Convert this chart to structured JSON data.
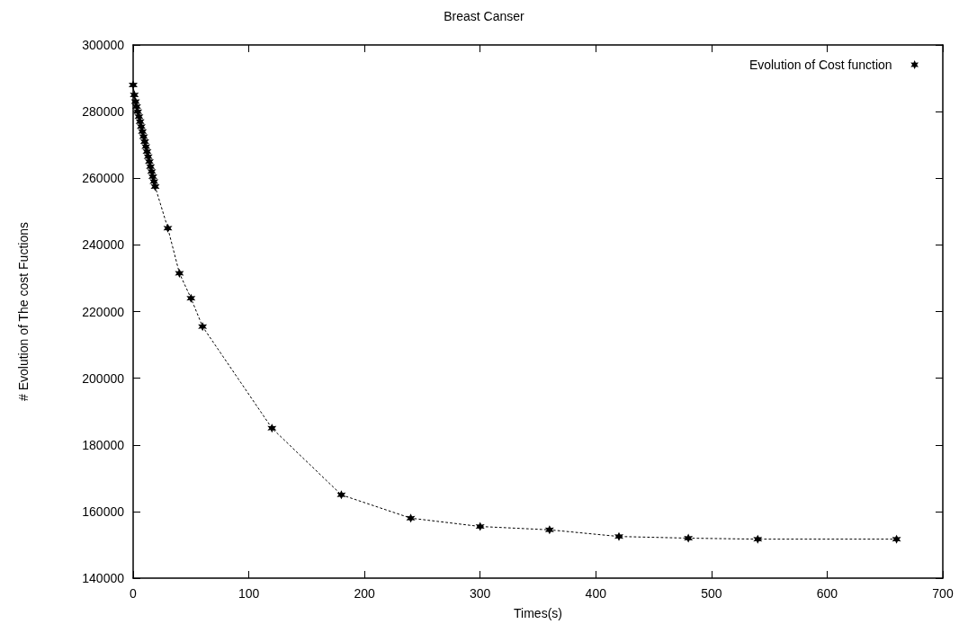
{
  "chart_data": {
    "type": "line",
    "title": "Breast Canser",
    "xlabel": "Times(s)",
    "ylabel": "# Evolution of The cost Fuctions",
    "x": [
      0,
      1,
      2,
      3,
      4,
      5,
      6,
      7,
      8,
      9,
      10,
      11,
      12,
      13,
      14,
      15,
      16,
      17,
      18,
      19,
      30,
      40,
      50,
      60,
      120,
      180,
      240,
      300,
      360,
      420,
      480,
      540,
      660
    ],
    "series": [
      {
        "name": "Evolution of Cost function",
        "color": "#000000",
        "values": [
          288000,
          285000,
          283000,
          281500,
          280000,
          278500,
          277000,
          275500,
          274000,
          272500,
          271000,
          269500,
          268000,
          266500,
          265000,
          263500,
          262000,
          260500,
          259000,
          257500,
          245000,
          231500,
          224000,
          215500,
          185000,
          165000,
          158000,
          155500,
          154500,
          152500,
          152000,
          151700,
          151700
        ]
      }
    ],
    "xlim": [
      0,
      700
    ],
    "xticks": [
      0,
      100,
      200,
      300,
      400,
      500,
      600,
      700
    ],
    "ylim": [
      140000,
      300000
    ],
    "yticks": [
      140000,
      160000,
      180000,
      200000,
      220000,
      240000,
      260000,
      280000,
      300000
    ],
    "grid": false,
    "legend": "top right",
    "marker": "cross",
    "line_style": "dotted"
  }
}
